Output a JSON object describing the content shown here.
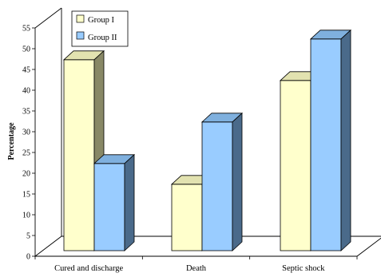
{
  "chart_data": {
    "type": "bar",
    "style": "3d-clustered-column",
    "categories": [
      "Cured and discharge",
      "Death",
      "Septic shock"
    ],
    "series": [
      {
        "name": "Group I",
        "values": [
          46,
          16,
          41
        ],
        "color": "#ffffcc"
      },
      {
        "name": "Group II",
        "values": [
          21,
          31,
          51
        ],
        "color": "#99ccff"
      }
    ],
    "ylabel": "Percentage",
    "ylim": [
      0,
      55
    ],
    "yticks": [
      0,
      5,
      10,
      15,
      20,
      25,
      30,
      35,
      40,
      45,
      50,
      55
    ],
    "grid": false,
    "legend": "top-left inside plot"
  }
}
